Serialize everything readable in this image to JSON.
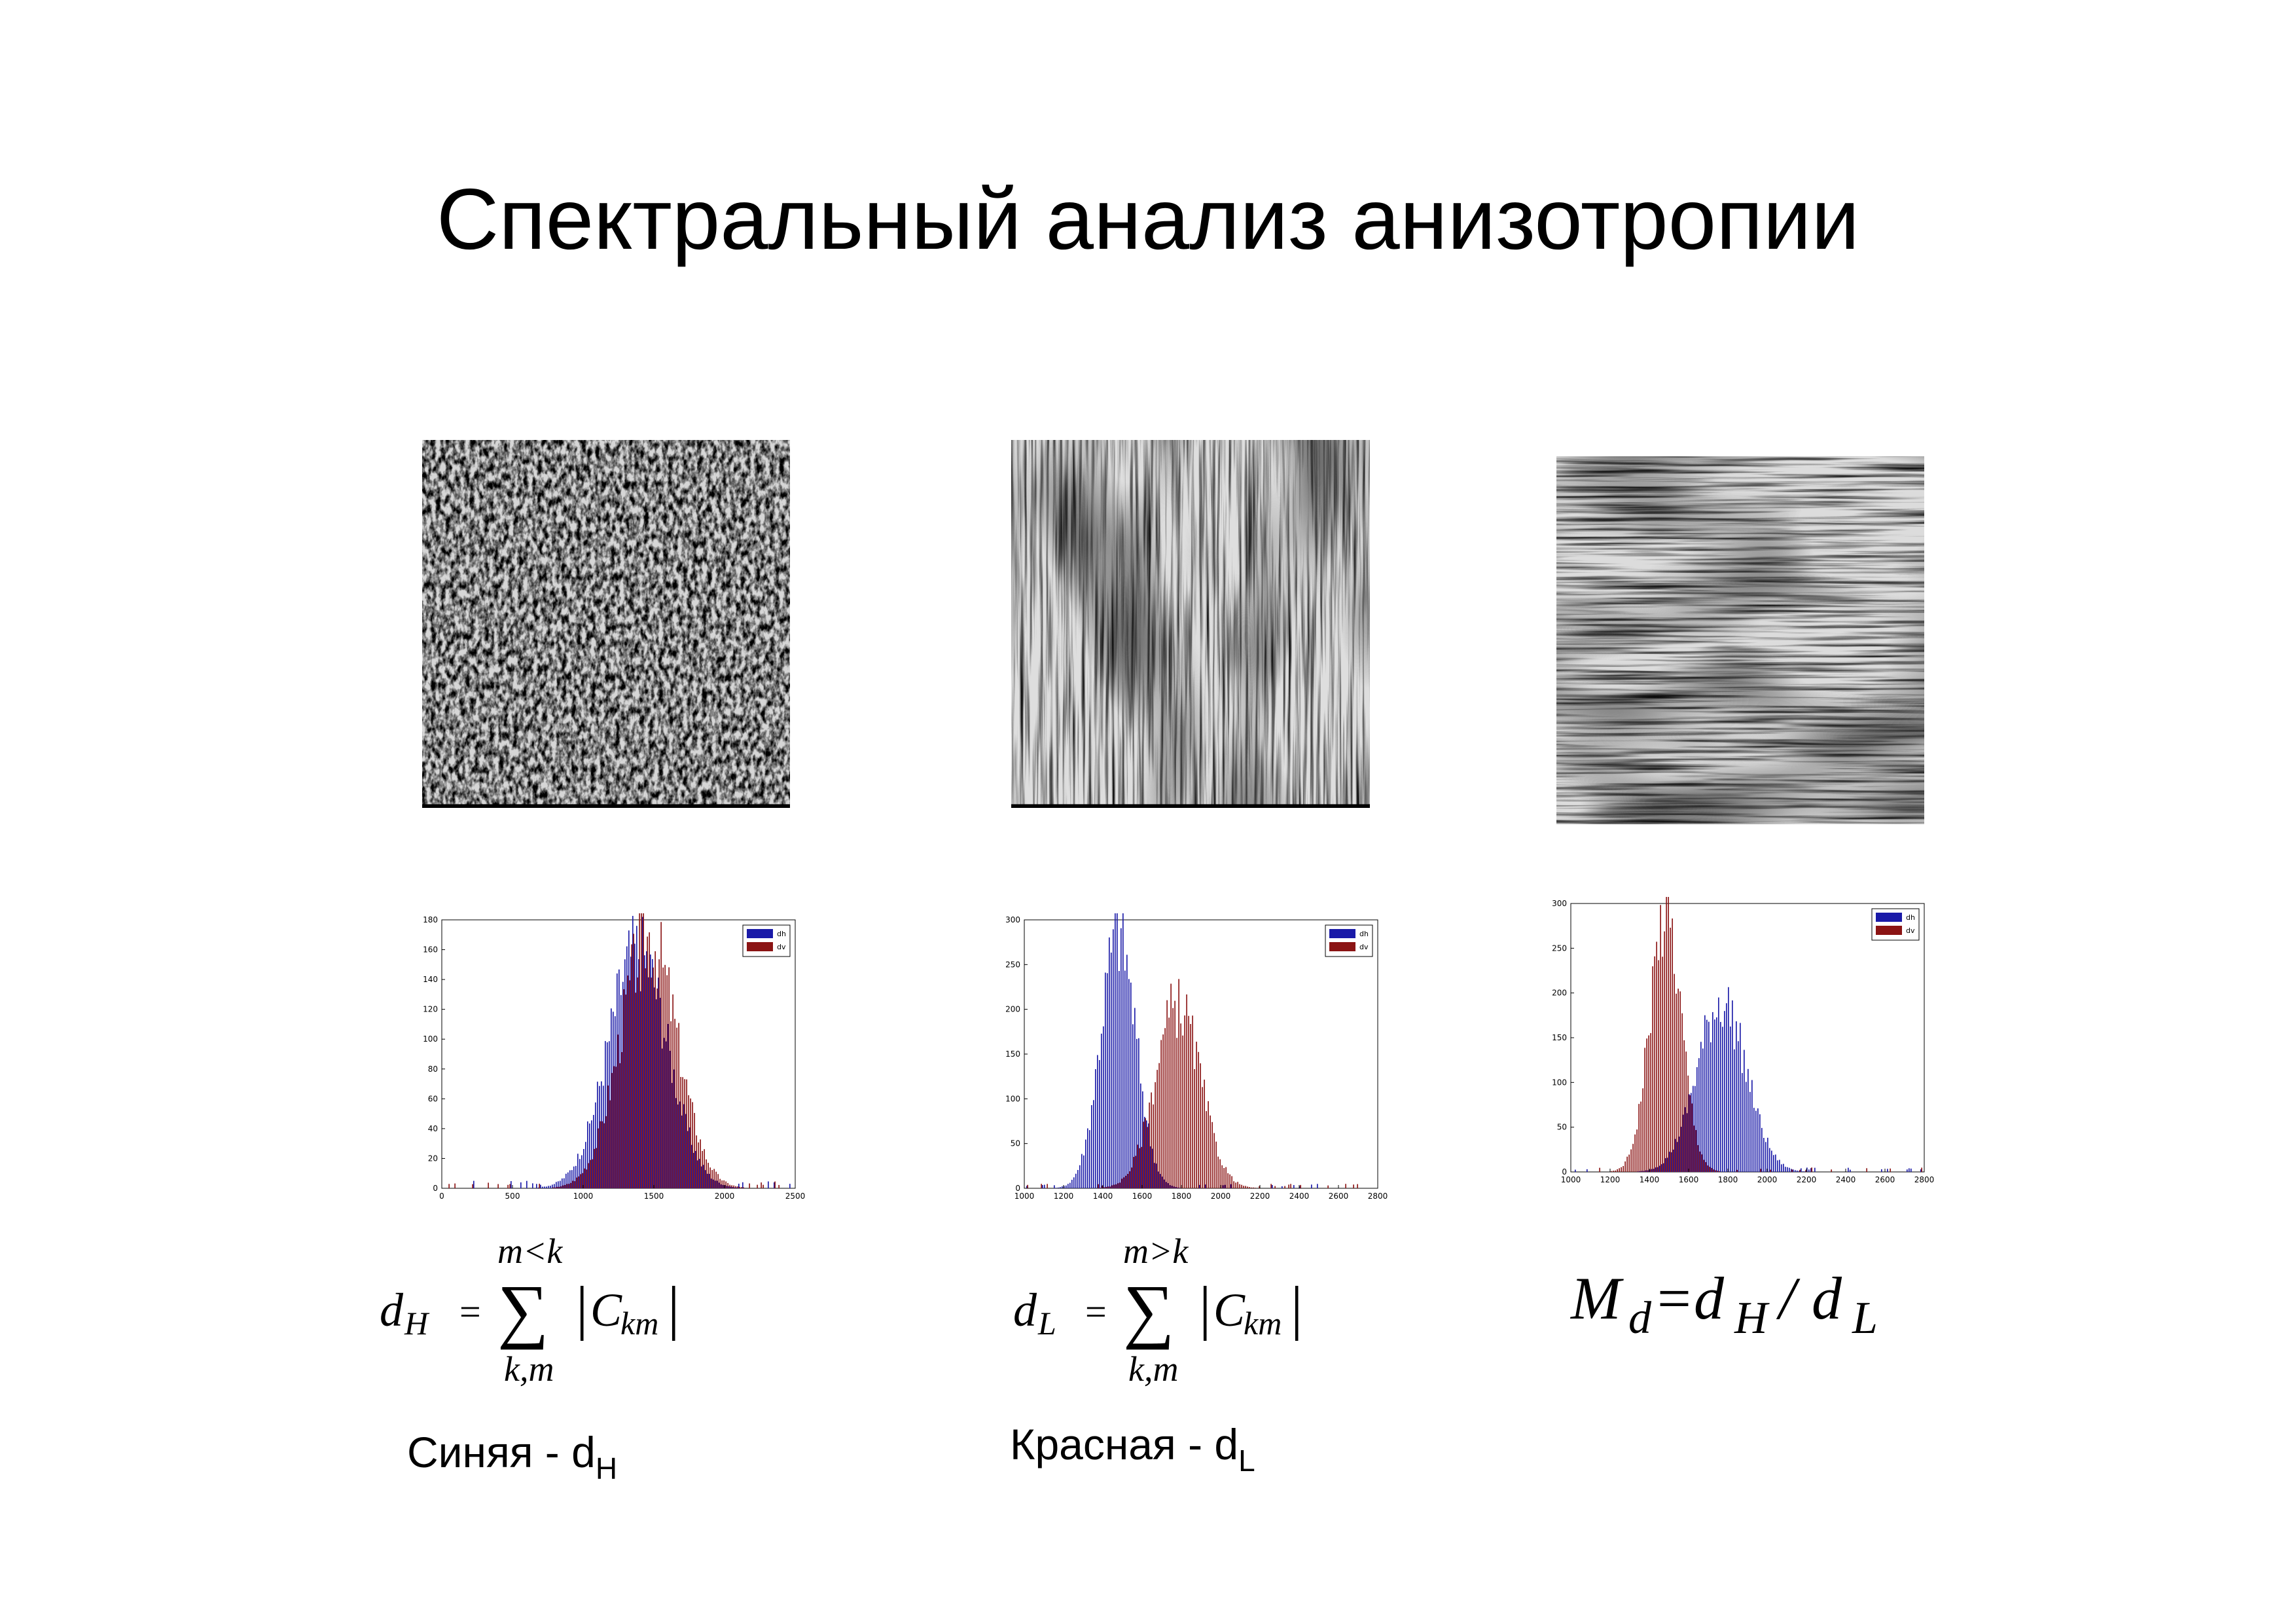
{
  "slide": {
    "title": "Спектральный анализ анизотропии"
  },
  "textures": [
    {
      "name": "grass-texture",
      "kind": "isotropic"
    },
    {
      "name": "vertical-wood-texture",
      "kind": "vertical"
    },
    {
      "name": "horizontal-wood-texture",
      "kind": "horizontal"
    }
  ],
  "formulas": {
    "dH": {
      "lhs": "d",
      "lhs_sub": "H",
      "eq": "=",
      "sum": "∑",
      "upper": "m<k",
      "lower": "k,m",
      "term": "C",
      "term_sub": "km"
    },
    "dL": {
      "lhs": "d",
      "lhs_sub": "L",
      "eq": "=",
      "sum": "∑",
      "upper": "m>k",
      "lower": "k,m",
      "term": "C",
      "term_sub": "km"
    },
    "Md": {
      "M": "M",
      "M_sub": "d",
      "eq": "=",
      "d1": "d",
      "d1_sub": "H",
      "slash": "/",
      "d2": "d",
      "d2_sub": "L"
    }
  },
  "labels": {
    "blue": {
      "text": "Синяя - d",
      "sub": "H"
    },
    "red": {
      "text": "Красная - d",
      "sub": "L"
    }
  },
  "colors": {
    "blue": "#1a1aa8",
    "red": "#8b1414",
    "overlap": "#3a0e2a"
  },
  "chart_data": [
    {
      "type": "bar",
      "xlim": [
        0,
        2500
      ],
      "ylim": [
        0,
        180
      ],
      "xticks": [
        0,
        500,
        1000,
        1500,
        2000,
        2500
      ],
      "yticks": [
        0,
        20,
        40,
        60,
        80,
        100,
        120,
        140,
        160,
        180
      ],
      "legend": [
        "dh",
        "dv"
      ],
      "legend_position": "top-right",
      "series": [
        {
          "name": "dh",
          "color": "blue",
          "mean": 1390,
          "sd": 210,
          "peak": 160
        },
        {
          "name": "dv",
          "color": "red",
          "mean": 1460,
          "sd": 200,
          "peak": 168
        }
      ]
    },
    {
      "type": "bar",
      "xlim": [
        1000,
        2800
      ],
      "ylim": [
        0,
        300
      ],
      "xticks": [
        1000,
        1200,
        1400,
        1600,
        1800,
        2000,
        2200,
        2400,
        2600,
        2800
      ],
      "yticks": [
        0,
        50,
        100,
        150,
        200,
        250,
        300
      ],
      "legend": [
        "dh",
        "dv"
      ],
      "legend_position": "top-right",
      "series": [
        {
          "name": "dh",
          "color": "blue",
          "mean": 1480,
          "sd": 90,
          "peak": 285
        },
        {
          "name": "dv",
          "color": "red",
          "mean": 1780,
          "sd": 115,
          "peak": 205
        }
      ]
    },
    {
      "type": "bar",
      "xlim": [
        1000,
        2800
      ],
      "ylim": [
        0,
        300
      ],
      "xticks": [
        1000,
        1200,
        1400,
        1600,
        1800,
        2000,
        2200,
        2400,
        2600,
        2800
      ],
      "yticks": [
        0,
        50,
        100,
        150,
        200,
        250,
        300
      ],
      "legend": [
        "dh",
        "dv"
      ],
      "legend_position": "top-right",
      "series": [
        {
          "name": "dh",
          "color": "blue",
          "mean": 1770,
          "sd": 125,
          "peak": 190
        },
        {
          "name": "dv",
          "color": "red",
          "mean": 1480,
          "sd": 80,
          "peak": 285
        }
      ]
    }
  ]
}
